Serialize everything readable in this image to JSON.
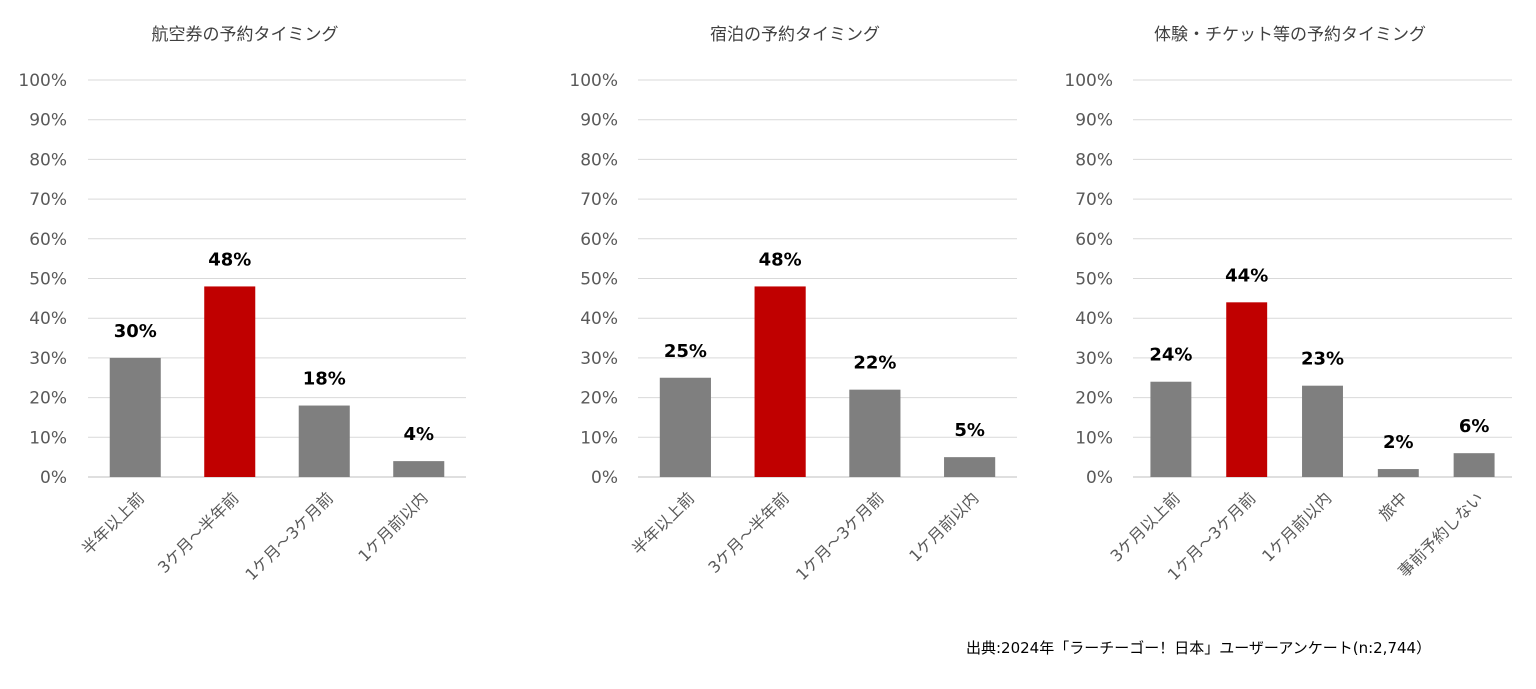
{
  "colors": {
    "gray": "#7f7f7f",
    "red": "#c00000"
  },
  "chart_data": [
    {
      "type": "bar",
      "title": "航空券の予約タイミング",
      "categories": [
        "半年以上前",
        "3ケ月～半年前",
        "1ケ月～3ケ月前",
        "1ケ月前以内"
      ],
      "values": [
        30,
        48,
        18,
        4
      ],
      "data_labels": [
        "30%",
        "48%",
        "18%",
        "4%"
      ],
      "highlight_index": 1,
      "ylim": [
        0,
        100
      ],
      "yticks": [
        "0%",
        "10%",
        "20%",
        "30%",
        "40%",
        "50%",
        "60%",
        "70%",
        "80%",
        "90%",
        "100%"
      ],
      "grid": true
    },
    {
      "type": "bar",
      "title": "宿泊の予約タイミング",
      "categories": [
        "半年以上前",
        "3ケ月～半年前",
        "1ケ月～3ケ月前",
        "1ケ月前以内"
      ],
      "values": [
        25,
        48,
        22,
        5
      ],
      "data_labels": [
        "25%",
        "48%",
        "22%",
        "5%"
      ],
      "highlight_index": 1,
      "ylim": [
        0,
        100
      ],
      "yticks": [
        "0%",
        "10%",
        "20%",
        "30%",
        "40%",
        "50%",
        "60%",
        "70%",
        "80%",
        "90%",
        "100%"
      ],
      "grid": true
    },
    {
      "type": "bar",
      "title": "体験・チケット等の予約タイミング",
      "categories": [
        "3ケ月以上前",
        "1ケ月～3ケ月前",
        "1ケ月前以内",
        "旅中",
        "事前予約しない"
      ],
      "values": [
        24,
        44,
        23,
        2,
        6
      ],
      "data_labels": [
        "24%",
        "44%",
        "23%",
        "2%",
        "6%"
      ],
      "highlight_index": 1,
      "ylim": [
        0,
        100
      ],
      "yticks": [
        "0%",
        "10%",
        "20%",
        "30%",
        "40%",
        "50%",
        "60%",
        "70%",
        "80%",
        "90%",
        "100%"
      ],
      "grid": true
    }
  ],
  "source": "出典:2024年「ラーチーゴー！日本」ユーザーアンケート(n:2,744）"
}
